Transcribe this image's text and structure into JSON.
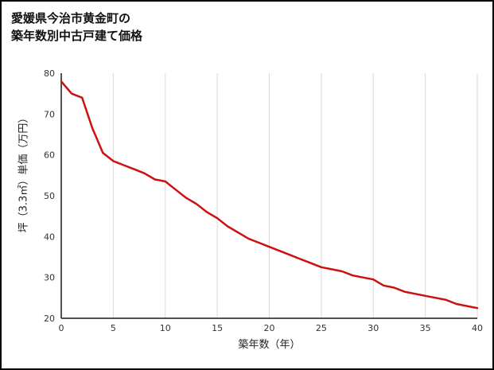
{
  "title": {
    "line1": "愛媛県今治市黄金町の",
    "line2": "築年数別中古戸建て価格"
  },
  "chart_data": {
    "type": "line",
    "title": "愛媛県今治市黄金町の築年数別中古戸建て価格",
    "xlabel": "築年数（年）",
    "ylabel": "坪（3.3㎡）単価（万円）",
    "xlim": [
      0,
      40
    ],
    "ylim": [
      20,
      80
    ],
    "xticks": [
      0,
      5,
      10,
      15,
      20,
      25,
      30,
      35,
      40
    ],
    "yticks": [
      20,
      30,
      40,
      50,
      60,
      70,
      80
    ],
    "grid": "vertical-only",
    "legend_position": "none",
    "line_color": "#cc1111",
    "grid_color": "#d9d9d9",
    "axis_color": "#1a1a1a",
    "series": [
      {
        "name": "坪単価（万円）",
        "x": [
          0,
          1,
          2,
          3,
          4,
          5,
          6,
          7,
          8,
          9,
          10,
          11,
          12,
          13,
          14,
          15,
          16,
          17,
          18,
          19,
          20,
          21,
          22,
          23,
          24,
          25,
          26,
          27,
          28,
          29,
          30,
          31,
          32,
          33,
          34,
          35,
          36,
          37,
          38,
          39,
          40
        ],
        "values": [
          78,
          75,
          74,
          66.5,
          60.5,
          58.5,
          57.5,
          56.5,
          55.5,
          54,
          53.5,
          51.5,
          49.5,
          48,
          46,
          44.5,
          42.5,
          41,
          39.5,
          38.5,
          37.5,
          36.5,
          35.5,
          34.5,
          33.5,
          32.5,
          32,
          31.5,
          30.5,
          30,
          29.5,
          28,
          27.5,
          26.5,
          26,
          25.5,
          25,
          24.5,
          23.5,
          23,
          22.5
        ]
      }
    ]
  }
}
